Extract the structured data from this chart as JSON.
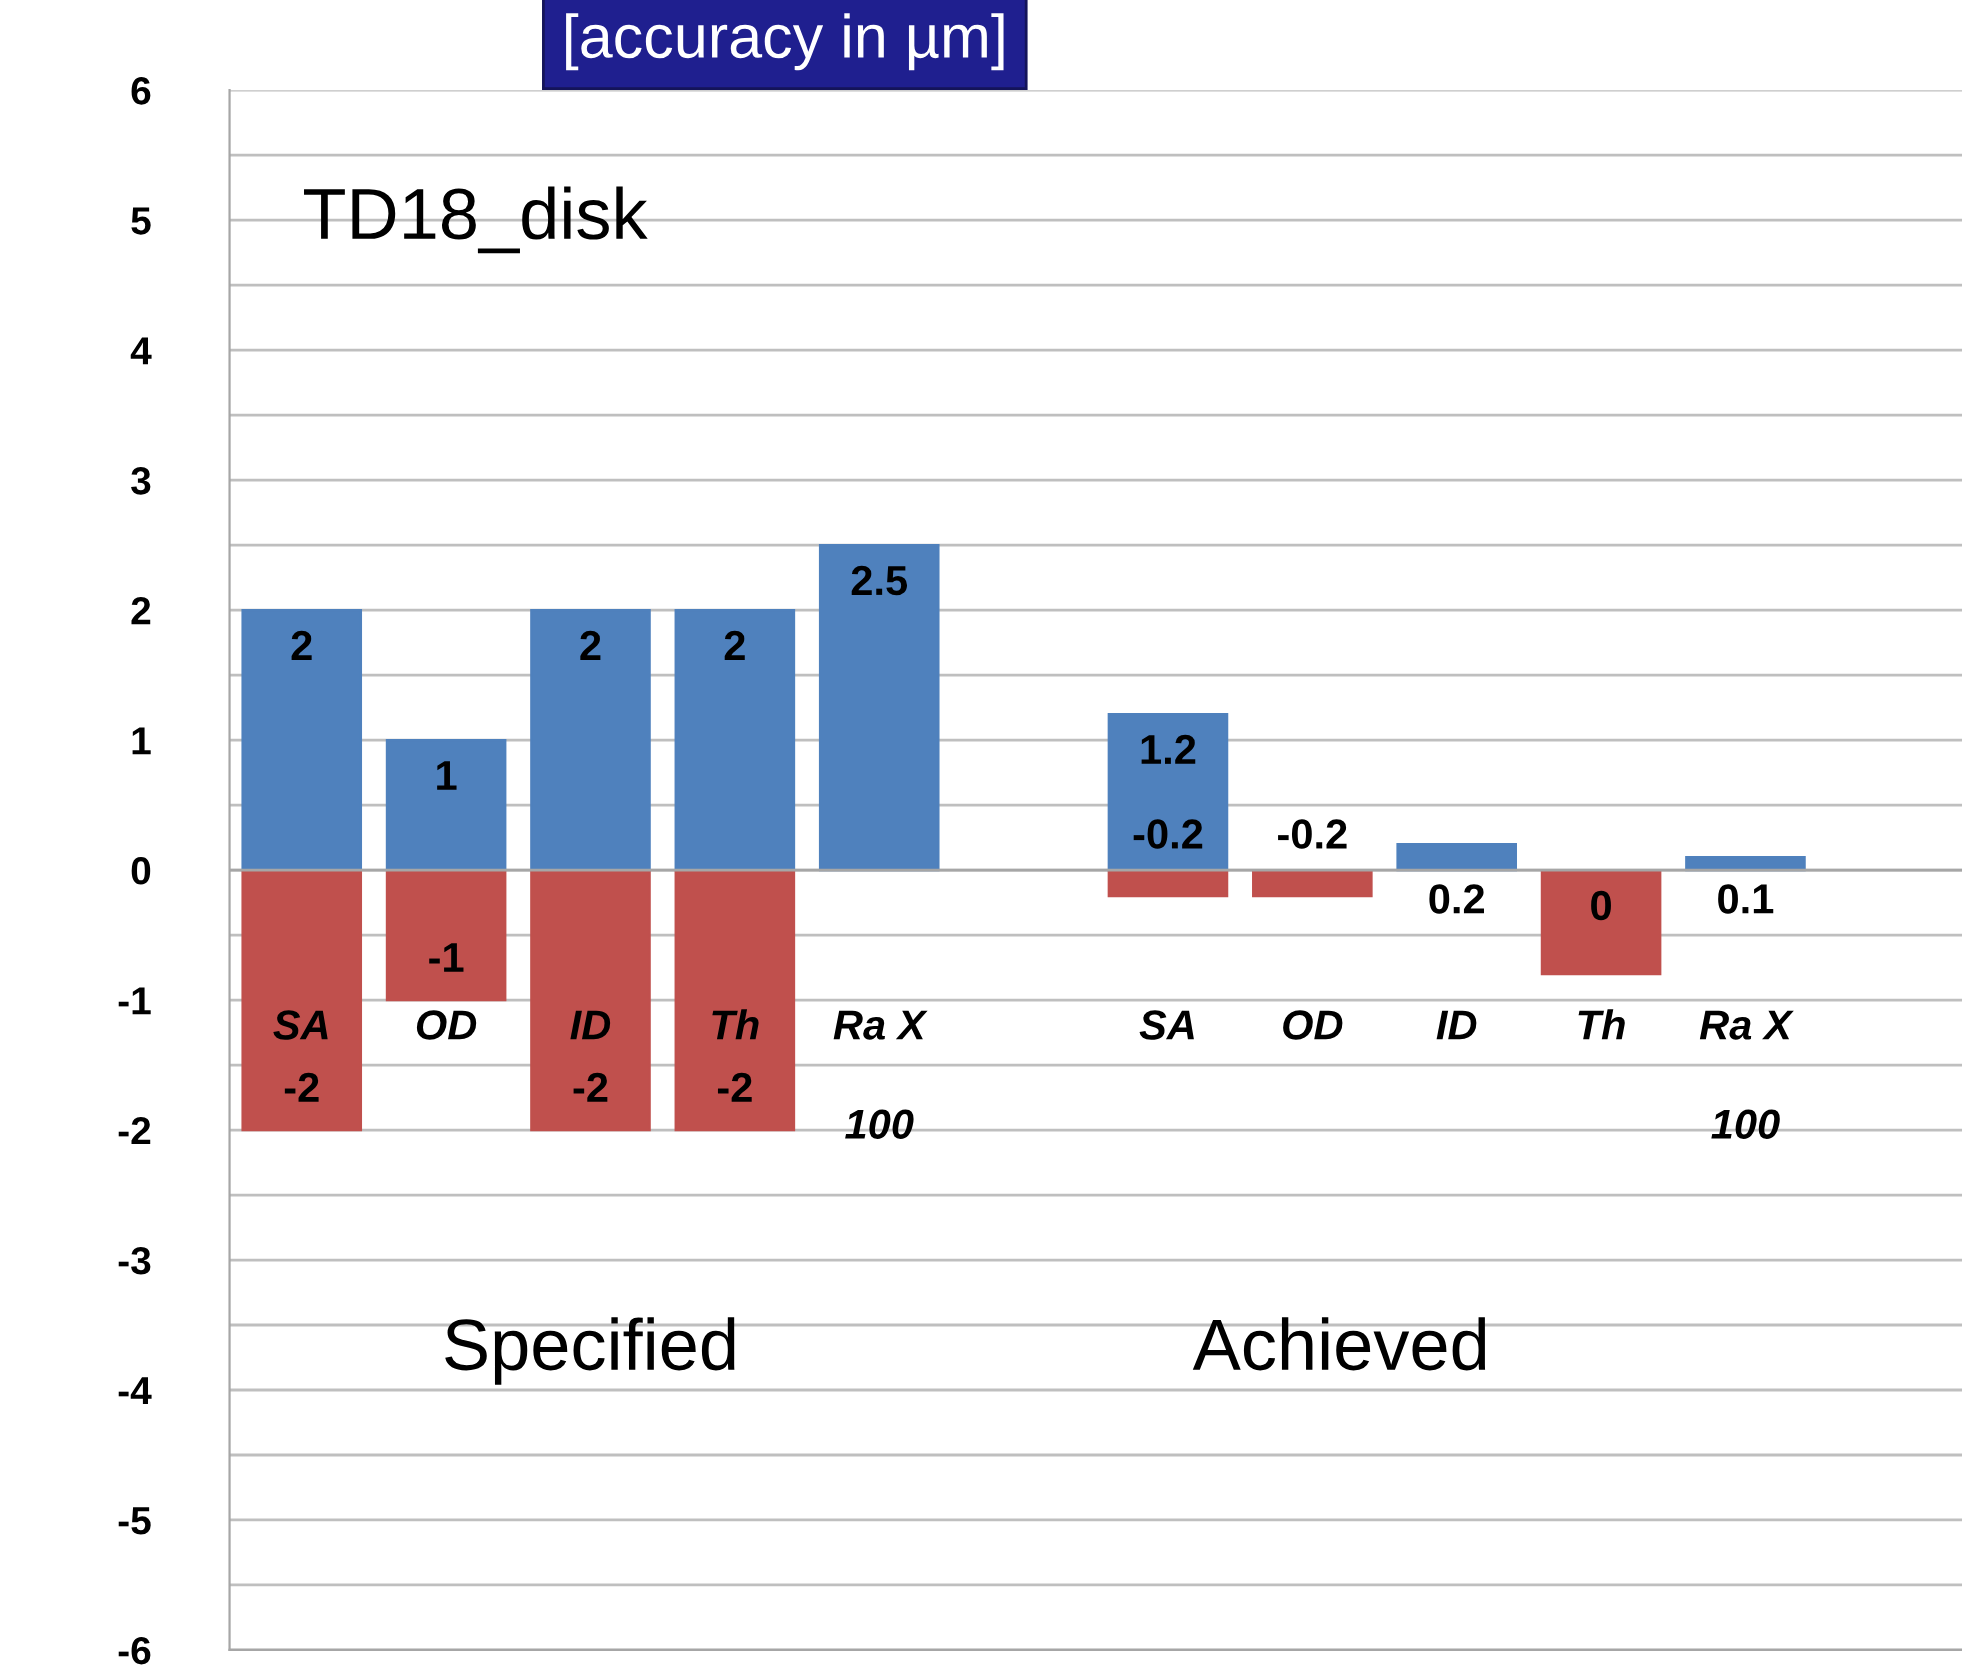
{
  "chart_data": {
    "type": "bar",
    "title": "[accuracy in µm]",
    "categories": [
      "SA",
      "OD",
      "ID",
      "Th",
      "Ra X\n100",
      null,
      "SA",
      "OD",
      "ID",
      "Th",
      "Ra X\n100",
      null
    ],
    "series": [
      {
        "color": "#4f81bd",
        "values": [
          2,
          1,
          2,
          2,
          2.5,
          null,
          1.2,
          null,
          0.2,
          0,
          0.1,
          null
        ],
        "value_labels": [
          "2",
          "1",
          "2",
          "2",
          "2.5",
          null,
          "1.2",
          null,
          "0.2",
          "0",
          "0.1",
          null
        ]
      },
      {
        "color": "#c0504d",
        "values": [
          -2,
          -1,
          -2,
          -2,
          null,
          null,
          -0.2,
          -0.2,
          null,
          -0.8,
          null,
          null
        ],
        "value_labels": [
          "-2",
          "-1",
          "-2",
          "-2",
          null,
          null,
          "-0.2",
          "-0.2",
          null,
          null,
          null,
          null
        ]
      }
    ],
    "ylim": [
      -6,
      6
    ],
    "yticks": [
      -6,
      {
        "value": -5.5,
        "label": null
      },
      -5,
      {
        "value": -4.5,
        "label": null
      },
      -4,
      {
        "value": -3.5,
        "label": null
      },
      -3,
      {
        "value": -2.5,
        "label": null
      },
      -2,
      {
        "value": -1.5,
        "label": null
      },
      -1,
      {
        "value": -0.5,
        "label": null
      },
      0,
      {
        "value": 0.5,
        "label": null
      },
      1,
      {
        "value": 1.5,
        "label": null
      },
      2,
      {
        "value": 2.5,
        "label": null
      },
      3,
      {
        "value": 3.5,
        "label": null
      },
      4,
      {
        "value": 4.5,
        "label": null
      },
      5,
      {
        "value": 5.5,
        "label": null
      },
      6
    ],
    "grid": "y",
    "annotations": [
      "TD18_disk",
      "Specified",
      "Achieved"
    ]
  }
}
